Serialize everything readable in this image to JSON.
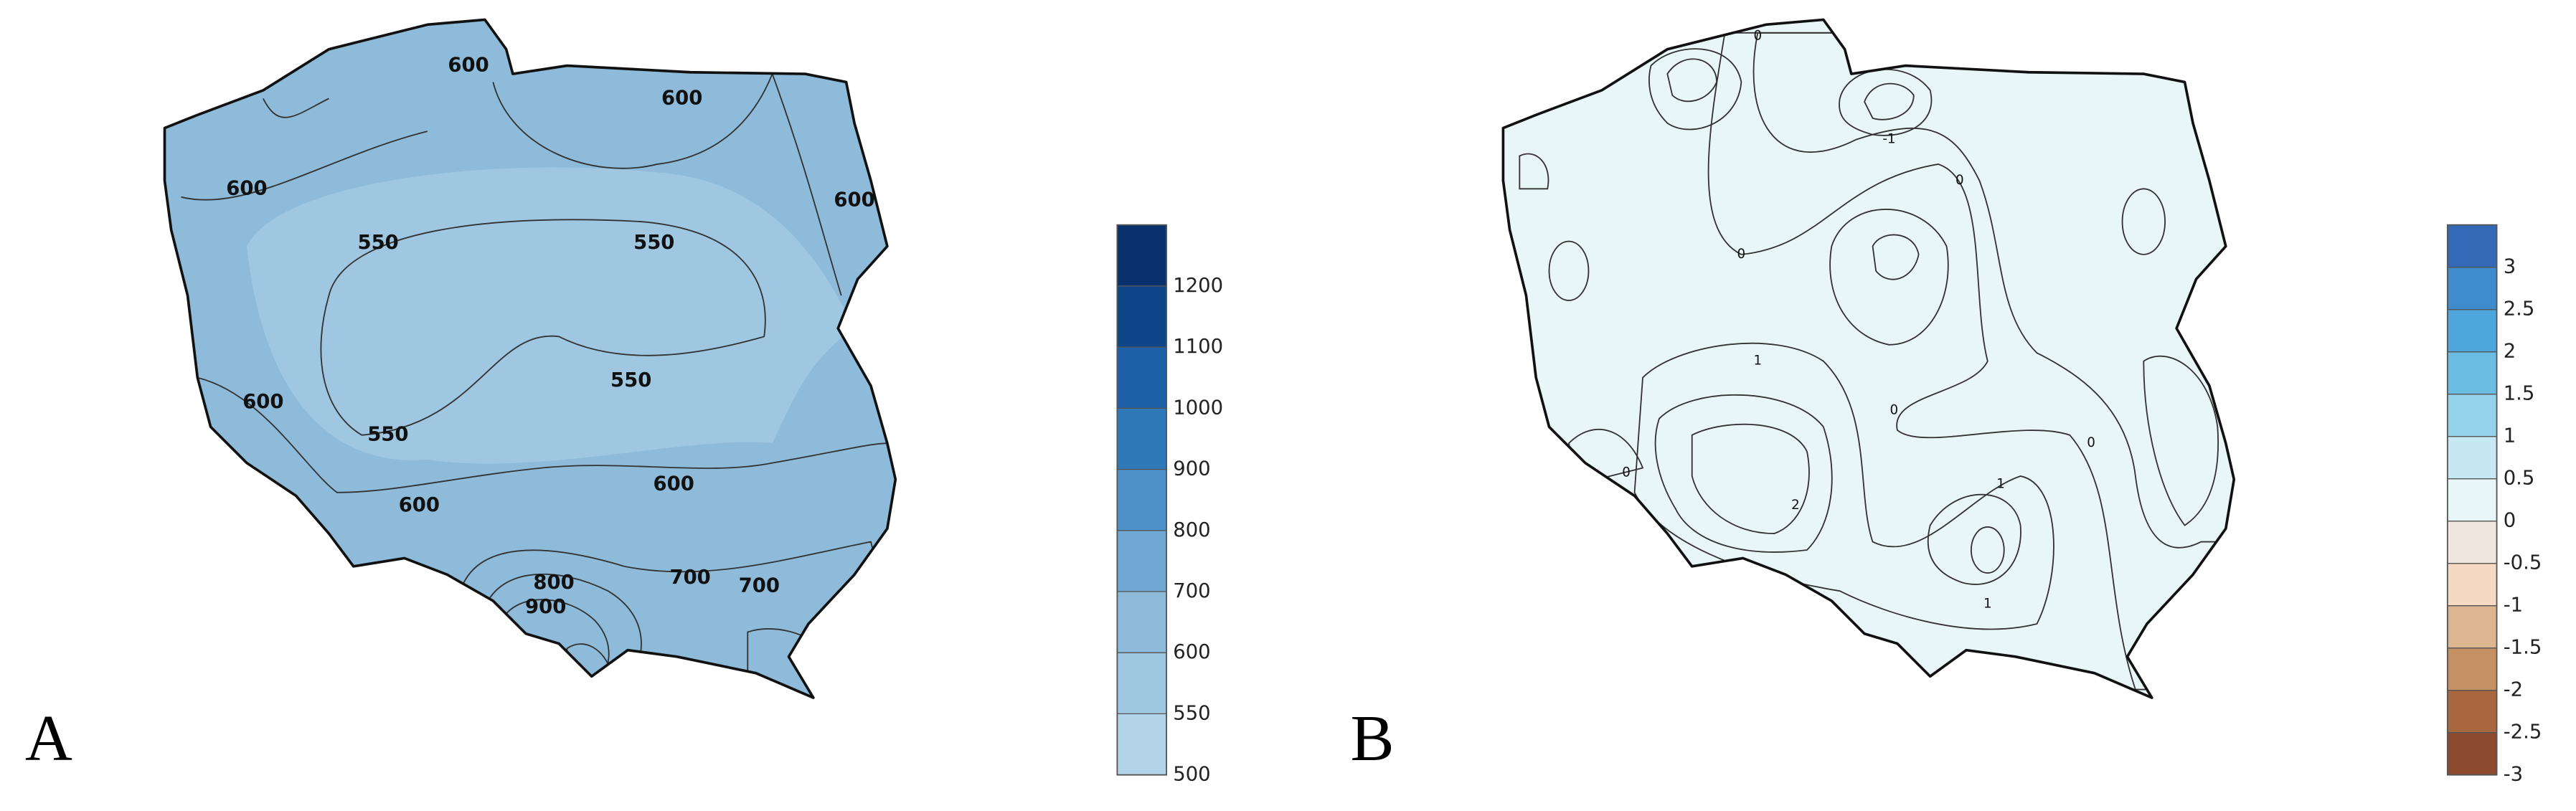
{
  "panels": [
    {
      "label": "A",
      "contour_labels": [
        600,
        600,
        600,
        600,
        600,
        600,
        600,
        550,
        550,
        550,
        550,
        800,
        900,
        700,
        700
      ],
      "colorbar": {
        "ticks": [
          500,
          550,
          600,
          700,
          800,
          900,
          1000,
          1100,
          1200
        ],
        "colors": [
          "#b3d3e8",
          "#a0c7e1",
          "#8dbbd9",
          "#6ea8d3",
          "#4d92c8",
          "#3079b9",
          "#1c60a7",
          "#0e4589",
          "#08306b"
        ]
      }
    },
    {
      "label": "B",
      "contour_labels": [
        0,
        0,
        0,
        0,
        0,
        0,
        -1,
        1,
        1,
        1,
        2
      ],
      "colorbar": {
        "ticks": [
          -3,
          -2.5,
          -2,
          -1.5,
          -1,
          -0.5,
          0,
          0.5,
          1,
          1.5,
          2,
          2.5,
          3
        ],
        "colors": [
          "#8b4a2e",
          "#a8673f",
          "#c39162",
          "#dcb691",
          "#f5d9c2",
          "#efe6dd",
          "#e9f6f8",
          "#c6e8f3",
          "#94d2ec",
          "#6cbde4",
          "#4ea7dc",
          "#3f8bcd",
          "#3369b6"
        ]
      }
    }
  ]
}
